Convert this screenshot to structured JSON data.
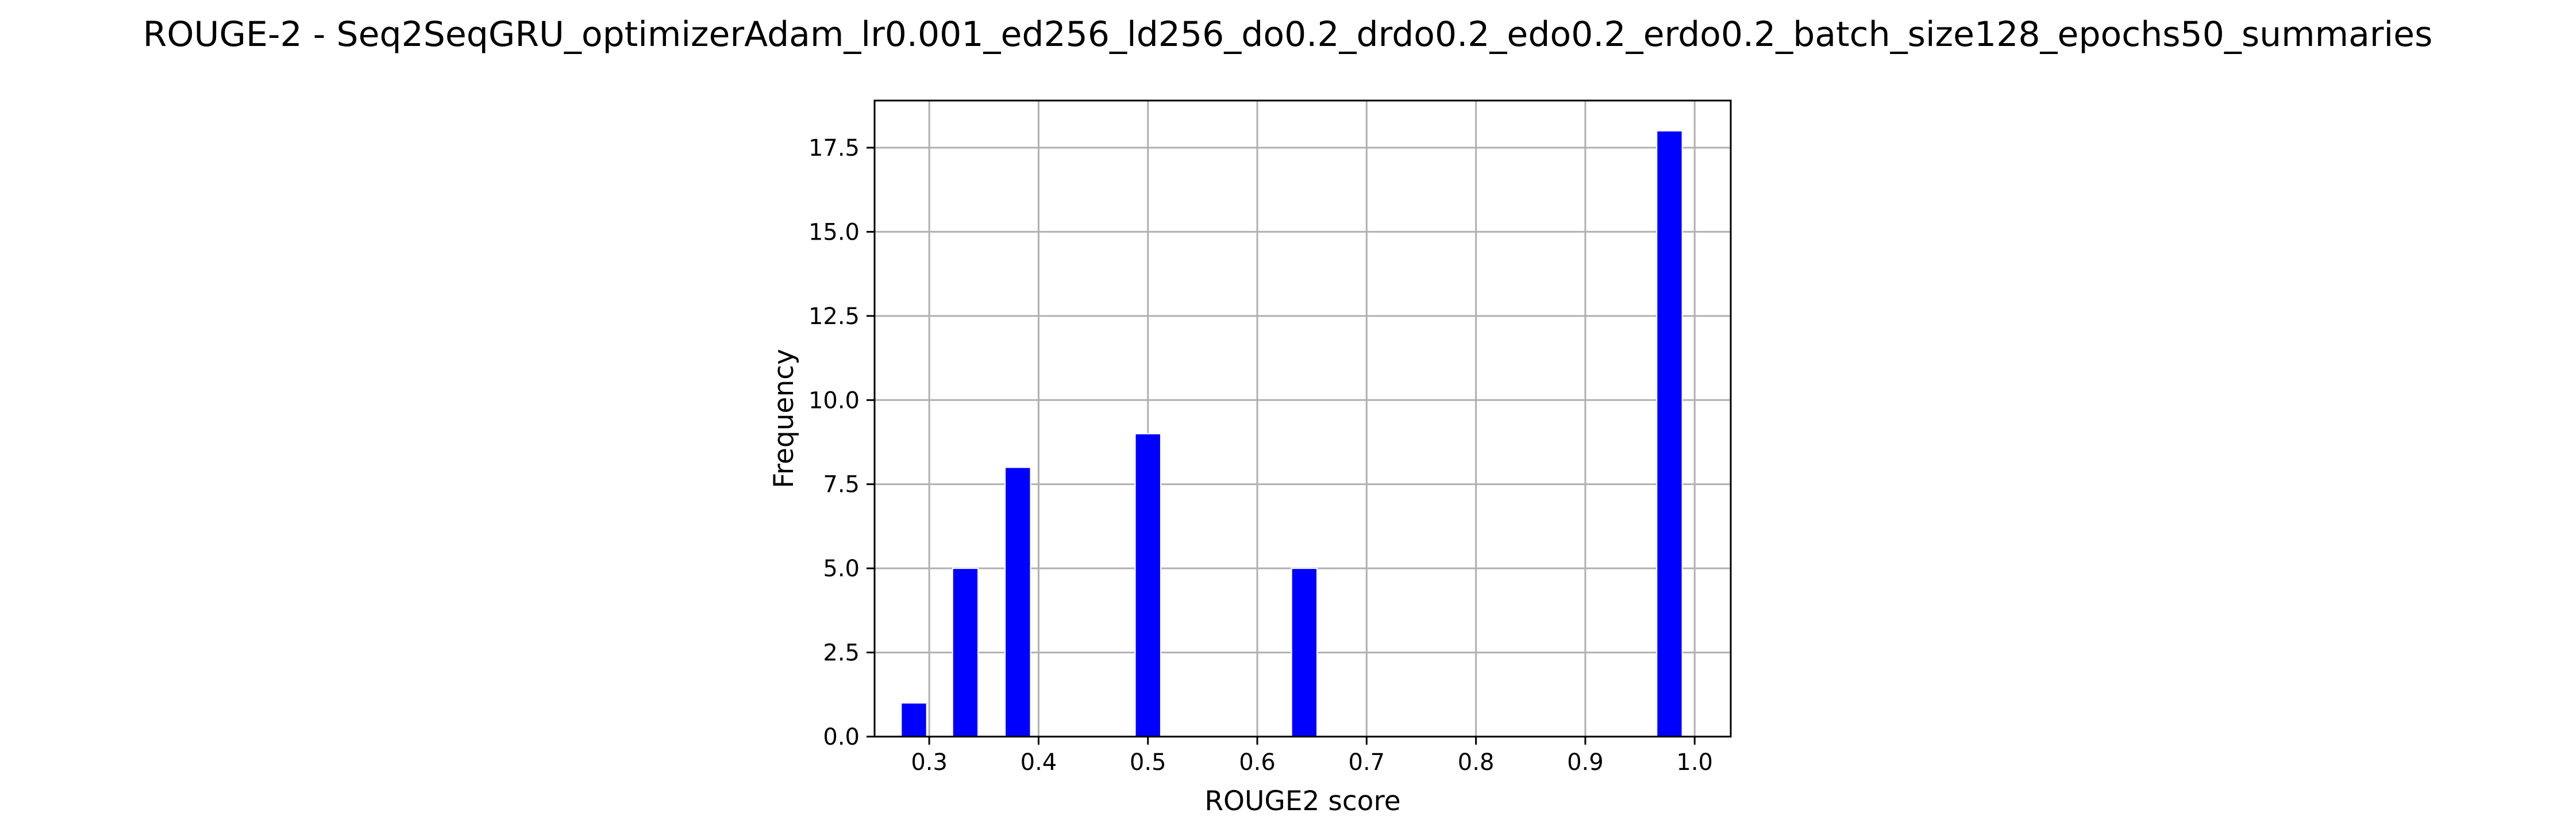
{
  "chart_data": {
    "type": "bar",
    "title": "ROUGE-2 - Seq2SeqGRU_optimizerAdam_lr0.001_ed256_ld256_do0.2_drdo0.2_edo0.2_erdo0.2_batch_size128_epochs50_summaries",
    "xlabel": "ROUGE2 score",
    "ylabel": "Frequency",
    "xlim": [
      0.25,
      1.033
    ],
    "ylim": [
      0,
      18.9
    ],
    "bin_width": 0.0233,
    "x_ticks": [
      "0.3",
      "0.4",
      "0.5",
      "0.6",
      "0.7",
      "0.8",
      "0.9",
      "1.0"
    ],
    "x_tick_values": [
      0.3,
      0.4,
      0.5,
      0.6,
      0.7,
      0.8,
      0.9,
      1.0
    ],
    "y_ticks": [
      "0.0",
      "2.5",
      "5.0",
      "7.5",
      "10.0",
      "12.5",
      "15.0",
      "17.5"
    ],
    "y_tick_values": [
      0,
      2.5,
      5,
      7.5,
      10,
      12.5,
      15,
      17.5
    ],
    "bins": [
      {
        "x": 0.286,
        "value": 1
      },
      {
        "x": 0.333,
        "value": 5
      },
      {
        "x": 0.381,
        "value": 8
      },
      {
        "x": 0.5,
        "value": 9
      },
      {
        "x": 0.643,
        "value": 5
      },
      {
        "x": 0.977,
        "value": 18
      }
    ],
    "grid": true,
    "legend": "none",
    "bar_color": "#0000ff"
  }
}
